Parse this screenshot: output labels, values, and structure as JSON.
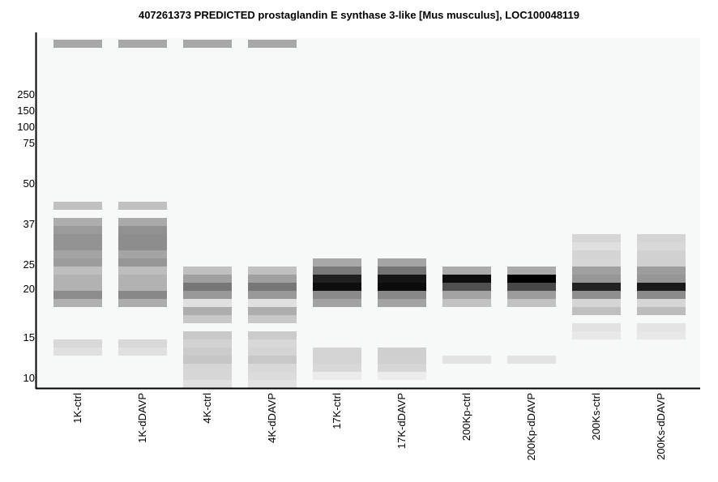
{
  "chart_data": {
    "type": "heatmap",
    "title": "407261373 PREDICTED  prostaglandin E synthase 3-like [Mus musculus], LOC100048119",
    "xlabel": "",
    "ylabel": "",
    "y_tick_labels": [
      "250",
      "150",
      "100",
      "75",
      "50",
      "37",
      "25",
      "20",
      "15",
      "10"
    ],
    "value_description": "gray level (0=black, 255=white) per gel slice; slice 0 is topmost",
    "background": "#f7f8f8",
    "lanes": [
      {
        "label": "1K-ctrl",
        "bands": [
          [
            0,
            168
          ],
          [
            20,
            192
          ],
          [
            22,
            173
          ],
          [
            23,
            155
          ],
          [
            24,
            147
          ],
          [
            25,
            147
          ],
          [
            26,
            164
          ],
          [
            27,
            156
          ],
          [
            28,
            190
          ],
          [
            29,
            178
          ],
          [
            30,
            178
          ],
          [
            31,
            140
          ],
          [
            32,
            176
          ],
          [
            37,
            216
          ],
          [
            38,
            224
          ]
        ]
      },
      {
        "label": "1K-dDAVP",
        "bands": [
          [
            0,
            168
          ],
          [
            20,
            192
          ],
          [
            22,
            170
          ],
          [
            23,
            145
          ],
          [
            24,
            141
          ],
          [
            25,
            141
          ],
          [
            26,
            164
          ],
          [
            27,
            150
          ],
          [
            28,
            189
          ],
          [
            29,
            178
          ],
          [
            30,
            178
          ],
          [
            31,
            136
          ],
          [
            32,
            172
          ],
          [
            37,
            216
          ],
          [
            38,
            224
          ]
        ]
      },
      {
        "label": "4K-ctrl",
        "bands": [
          [
            0,
            168
          ],
          [
            28,
            192
          ],
          [
            29,
            160
          ],
          [
            30,
            119
          ],
          [
            31,
            153
          ],
          [
            32,
            224
          ],
          [
            33,
            173
          ],
          [
            34,
            200
          ],
          [
            36,
            201
          ],
          [
            37,
            210
          ],
          [
            38,
            203
          ],
          [
            39,
            198
          ],
          [
            40,
            214
          ],
          [
            41,
            214
          ],
          [
            42,
            224
          ]
        ]
      },
      {
        "label": "4K-dDAVP",
        "bands": [
          [
            0,
            168
          ],
          [
            28,
            192
          ],
          [
            29,
            160
          ],
          [
            30,
            119
          ],
          [
            31,
            153
          ],
          [
            32,
            224
          ],
          [
            33,
            173
          ],
          [
            34,
            200
          ],
          [
            36,
            203
          ],
          [
            37,
            216
          ],
          [
            38,
            212
          ],
          [
            39,
            200
          ],
          [
            40,
            216
          ],
          [
            41,
            220
          ],
          [
            42,
            226
          ]
        ]
      },
      {
        "label": "17K-ctrl",
        "bands": [
          [
            27,
            168
          ],
          [
            28,
            122
          ],
          [
            29,
            32
          ],
          [
            30,
            14
          ],
          [
            31,
            138
          ],
          [
            32,
            162
          ],
          [
            38,
            212
          ],
          [
            39,
            212
          ],
          [
            40,
            216
          ],
          [
            41,
            235
          ]
        ]
      },
      {
        "label": "17K-dDAVP",
        "bands": [
          [
            27,
            164
          ],
          [
            28,
            116
          ],
          [
            29,
            21
          ],
          [
            30,
            11
          ],
          [
            31,
            136
          ],
          [
            32,
            163
          ],
          [
            38,
            207
          ],
          [
            39,
            208
          ],
          [
            40,
            214
          ],
          [
            41,
            236
          ]
        ]
      },
      {
        "label": "200Kp-ctrl",
        "bands": [
          [
            28,
            171
          ],
          [
            29,
            13
          ],
          [
            30,
            80
          ],
          [
            31,
            163
          ],
          [
            32,
            194
          ],
          [
            39,
            227
          ]
        ]
      },
      {
        "label": "200Kp-dDAVP",
        "bands": [
          [
            28,
            170
          ],
          [
            29,
            0
          ],
          [
            30,
            71
          ],
          [
            31,
            156
          ],
          [
            32,
            194
          ],
          [
            39,
            227
          ]
        ]
      },
      {
        "label": "200Ks-ctrl",
        "bands": [
          [
            24,
            214
          ],
          [
            25,
            223
          ],
          [
            26,
            212
          ],
          [
            27,
            214
          ],
          [
            28,
            160
          ],
          [
            29,
            151
          ],
          [
            30,
            34
          ],
          [
            31,
            143
          ],
          [
            32,
            213
          ],
          [
            33,
            192
          ],
          [
            35,
            226
          ],
          [
            36,
            232
          ]
        ]
      },
      {
        "label": "200Ks-dDAVP",
        "bands": [
          [
            24,
            212
          ],
          [
            25,
            216
          ],
          [
            26,
            210
          ],
          [
            27,
            208
          ],
          [
            28,
            157
          ],
          [
            29,
            150
          ],
          [
            30,
            26
          ],
          [
            31,
            139
          ],
          [
            32,
            214
          ],
          [
            33,
            188
          ],
          [
            35,
            228
          ],
          [
            36,
            232
          ]
        ]
      }
    ]
  }
}
